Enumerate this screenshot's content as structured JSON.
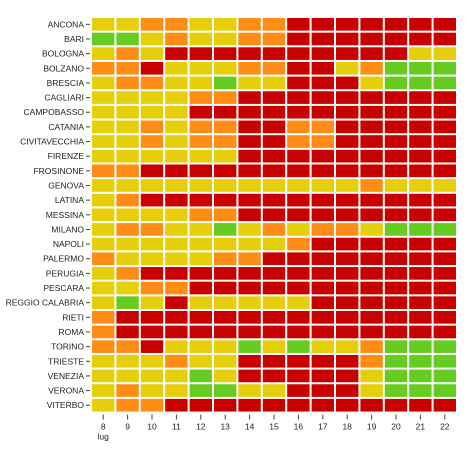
{
  "chart_data": {
    "type": "heatmap",
    "title": "",
    "xlabel": "",
    "ylabel": "",
    "x_labels": [
      "8",
      "9",
      "10",
      "11",
      "12",
      "13",
      "14",
      "15",
      "16",
      "17",
      "18",
      "19",
      "20",
      "21",
      "22"
    ],
    "x_sublabel": "lug",
    "y_labels": [
      "ANCONA",
      "BARI",
      "BOLOGNA",
      "BOLZANO",
      "BRESCIA",
      "CAGLIARI",
      "CAMPOBASSO",
      "CATANIA",
      "CIVITAVECCHIA",
      "FIRENZE",
      "FROSINONE",
      "GENOVA",
      "LATINA",
      "MESSINA",
      "MILANO",
      "NAPOLI",
      "PALERMO",
      "PERUGIA",
      "PESCARA",
      "REGGIO CALABRIA",
      "RIETI",
      "ROMA",
      "TORINO",
      "TRIESTE",
      "VENEZIA",
      "VERONA",
      "VITERBO"
    ],
    "levels": [
      {
        "level": 0,
        "color": "#66cc22"
      },
      {
        "level": 1,
        "color": "#e6cf0a"
      },
      {
        "level": 2,
        "color": "#ff8c14"
      },
      {
        "level": 3,
        "color": "#c80000"
      }
    ],
    "values": [
      [
        1,
        1,
        2,
        2,
        1,
        1,
        2,
        2,
        3,
        3,
        3,
        3,
        3,
        3,
        3
      ],
      [
        0,
        0,
        1,
        2,
        1,
        1,
        2,
        2,
        3,
        3,
        3,
        3,
        3,
        3,
        3
      ],
      [
        1,
        2,
        1,
        3,
        3,
        3,
        3,
        3,
        3,
        3,
        3,
        3,
        3,
        1,
        1
      ],
      [
        2,
        2,
        3,
        1,
        1,
        1,
        2,
        2,
        3,
        3,
        1,
        2,
        0,
        0,
        0
      ],
      [
        1,
        2,
        2,
        1,
        1,
        0,
        1,
        1,
        3,
        3,
        3,
        1,
        0,
        0,
        0
      ],
      [
        1,
        1,
        1,
        1,
        2,
        2,
        3,
        3,
        3,
        3,
        3,
        3,
        3,
        3,
        3
      ],
      [
        1,
        1,
        1,
        1,
        3,
        3,
        3,
        3,
        3,
        3,
        3,
        3,
        3,
        3,
        3
      ],
      [
        1,
        1,
        2,
        1,
        2,
        2,
        3,
        3,
        2,
        2,
        3,
        3,
        3,
        3,
        3
      ],
      [
        1,
        1,
        2,
        1,
        2,
        2,
        3,
        3,
        2,
        2,
        3,
        3,
        3,
        3,
        3
      ],
      [
        1,
        1,
        1,
        1,
        1,
        1,
        3,
        3,
        3,
        3,
        3,
        3,
        3,
        3,
        3
      ],
      [
        2,
        2,
        3,
        3,
        3,
        3,
        3,
        3,
        3,
        3,
        3,
        3,
        3,
        3,
        3
      ],
      [
        1,
        1,
        1,
        1,
        1,
        1,
        1,
        1,
        1,
        1,
        1,
        2,
        1,
        1,
        1
      ],
      [
        1,
        2,
        3,
        3,
        3,
        3,
        3,
        3,
        3,
        3,
        3,
        3,
        3,
        3,
        3
      ],
      [
        1,
        1,
        1,
        1,
        2,
        2,
        3,
        3,
        3,
        3,
        3,
        3,
        3,
        3,
        3
      ],
      [
        1,
        2,
        2,
        1,
        1,
        0,
        1,
        2,
        1,
        2,
        2,
        1,
        0,
        0,
        0
      ],
      [
        1,
        1,
        1,
        1,
        1,
        1,
        1,
        1,
        2,
        3,
        3,
        3,
        3,
        3,
        3
      ],
      [
        2,
        1,
        1,
        1,
        1,
        2,
        2,
        3,
        3,
        3,
        3,
        3,
        3,
        3,
        3
      ],
      [
        1,
        2,
        3,
        3,
        3,
        3,
        3,
        3,
        3,
        3,
        3,
        3,
        3,
        3,
        3
      ],
      [
        1,
        1,
        2,
        2,
        3,
        3,
        3,
        3,
        3,
        3,
        3,
        3,
        3,
        3,
        3
      ],
      [
        1,
        0,
        1,
        3,
        1,
        1,
        1,
        1,
        1,
        3,
        3,
        3,
        3,
        3,
        3
      ],
      [
        2,
        3,
        3,
        3,
        3,
        3,
        3,
        3,
        3,
        3,
        3,
        3,
        3,
        3,
        3
      ],
      [
        2,
        3,
        3,
        3,
        3,
        3,
        3,
        3,
        3,
        3,
        3,
        3,
        3,
        3,
        3
      ],
      [
        2,
        2,
        3,
        1,
        1,
        1,
        0,
        1,
        0,
        1,
        1,
        2,
        0,
        0,
        0
      ],
      [
        1,
        1,
        1,
        2,
        1,
        1,
        3,
        3,
        3,
        3,
        3,
        2,
        0,
        0,
        0
      ],
      [
        1,
        1,
        1,
        1,
        0,
        1,
        3,
        3,
        3,
        3,
        3,
        1,
        0,
        0,
        0
      ],
      [
        1,
        2,
        1,
        1,
        0,
        0,
        1,
        1,
        3,
        3,
        3,
        1,
        0,
        0,
        0
      ],
      [
        1,
        2,
        2,
        3,
        3,
        3,
        3,
        3,
        3,
        3,
        3,
        3,
        3,
        3,
        3
      ]
    ]
  }
}
